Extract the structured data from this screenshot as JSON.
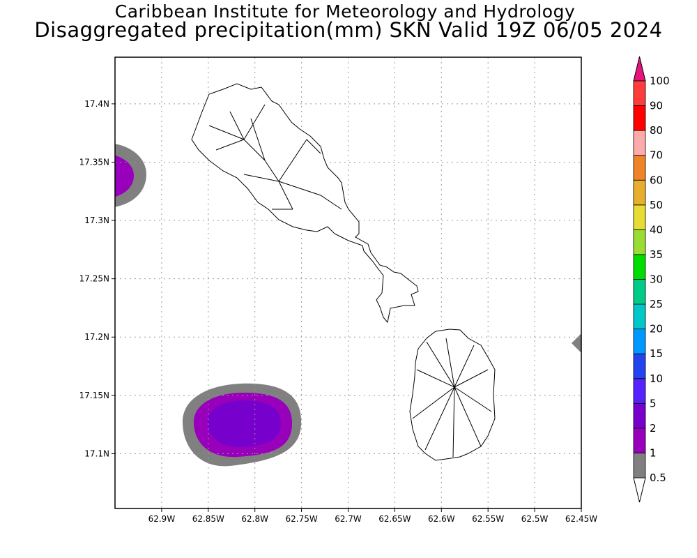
{
  "title": {
    "line1": "Caribbean Institute for Meteorology and Hydrology",
    "line2": "Disaggregated precipitation(mm) SKN Valid 19Z 06/05 2024"
  },
  "chart_data": {
    "type": "heatmap",
    "title": "Disaggregated precipitation(mm) SKN Valid 19Z 06/05 2024",
    "xlim": [
      -62.95,
      -62.45
    ],
    "ylim": [
      17.053,
      17.44
    ],
    "x_ticks": [
      -62.9,
      -62.85,
      -62.8,
      -62.75,
      -62.7,
      -62.65,
      -62.6,
      -62.55,
      -62.5,
      -62.45
    ],
    "x_tick_labels": [
      "62.9W",
      "62.85W",
      "62.8W",
      "62.75W",
      "62.7W",
      "62.65W",
      "62.6W",
      "62.55W",
      "62.5W",
      "62.45W"
    ],
    "y_ticks": [
      17.1,
      17.15,
      17.2,
      17.25,
      17.3,
      17.35,
      17.4
    ],
    "y_tick_labels": [
      "17.1N",
      "17.15N",
      "17.2N",
      "17.25N",
      "17.3N",
      "17.35N",
      "17.4N"
    ],
    "grid": true,
    "colorbar": {
      "placement": "right",
      "levels": [
        "0.5",
        "1",
        "2",
        "5",
        "10",
        "15",
        "20",
        "25",
        "30",
        "35",
        "40",
        "50",
        "60",
        "70",
        "80",
        "90",
        "100"
      ],
      "colors": [
        "#808080",
        "#9900bb",
        "#7700cc",
        "#5522ff",
        "#2244ee",
        "#0099ff",
        "#00c8c8",
        "#00cc88",
        "#00dd00",
        "#99dd33",
        "#e6dc32",
        "#e6af2d",
        "#f08228",
        "#ffaaaa",
        "#ff0000",
        "#ff3c3c"
      ],
      "over_color": "#e6147d",
      "under_color": "#ffffff"
    },
    "precip_areas": [
      {
        "name": "southwest cell",
        "center": [
          -62.81,
          17.125
        ],
        "max_class": "2-5"
      },
      {
        "name": "west edge cell",
        "center": [
          -62.95,
          17.34
        ],
        "max_class": "1-2"
      },
      {
        "name": "east edge cell",
        "center": [
          -62.45,
          17.195
        ],
        "max_class": "0.5-1"
      }
    ]
  }
}
